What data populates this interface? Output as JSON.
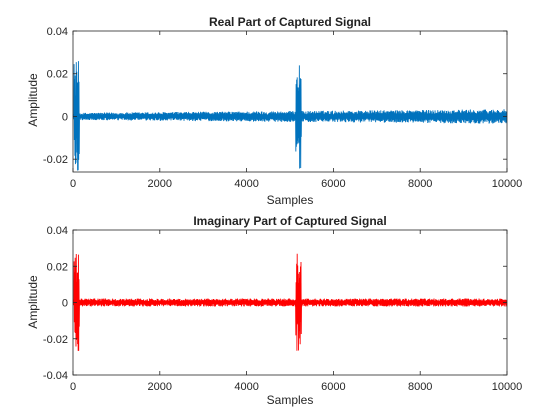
{
  "figure": {
    "background": "#ffffff"
  },
  "chart_data": [
    {
      "type": "line",
      "title": "Real Part of Captured Signal",
      "xlabel": "Samples",
      "ylabel": "Amplitude",
      "xlim": [
        0,
        10000
      ],
      "ylim": [
        -0.026,
        0.04
      ],
      "xticks": [
        0,
        2000,
        4000,
        6000,
        8000,
        10000
      ],
      "xtick_labels": [
        "0",
        "2000",
        "4000",
        "6000",
        "8000",
        "10000"
      ],
      "yticks": [
        -0.02,
        0,
        0.02,
        0.04
      ],
      "ytick_labels": [
        "-0.02",
        "0",
        "0.02",
        "0.04"
      ],
      "grid": false,
      "box": true,
      "series": [
        {
          "color": "#0072BD",
          "baseline_amplitude": 0.0017,
          "baseline_trend_end": 0.0034,
          "bursts": [
            {
              "start": 20,
              "end": 150,
              "amplitude": 0.026
            },
            {
              "start": 5130,
              "end": 5260,
              "amplitude": 0.026
            }
          ]
        }
      ]
    },
    {
      "type": "line",
      "title": "Imaginary Part of Captured Signal",
      "xlabel": "Samples",
      "ylabel": "Amplitude",
      "xlim": [
        0,
        10000
      ],
      "ylim": [
        -0.04,
        0.04
      ],
      "xticks": [
        0,
        2000,
        4000,
        6000,
        8000,
        10000
      ],
      "xtick_labels": [
        "0",
        "2000",
        "4000",
        "6000",
        "8000",
        "10000"
      ],
      "yticks": [
        -0.04,
        -0.02,
        0,
        0.02,
        0.04
      ],
      "ytick_labels": [
        "-0.04",
        "-0.02",
        "0",
        "0.02",
        "0.04"
      ],
      "grid": false,
      "box": true,
      "series": [
        {
          "color": "#FF0000",
          "baseline_amplitude": 0.0022,
          "baseline_trend_end": 0.0022,
          "bursts": [
            {
              "start": 20,
              "end": 150,
              "amplitude": 0.027
            },
            {
              "start": 5130,
              "end": 5260,
              "amplitude": 0.027
            }
          ]
        }
      ]
    }
  ]
}
